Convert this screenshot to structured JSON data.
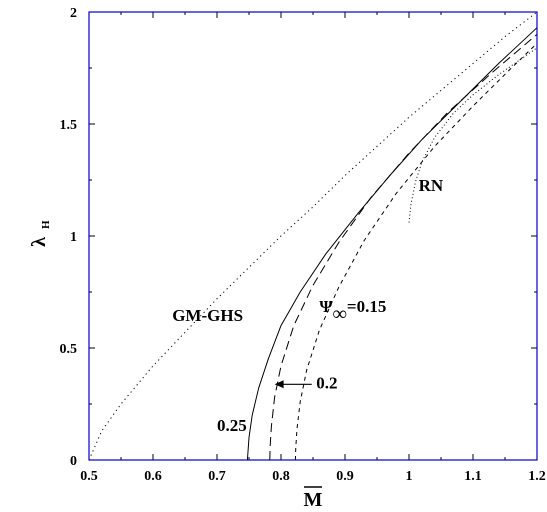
{
  "chart_data": {
    "type": "line",
    "xlabel": "M",
    "ylabel": "λ",
    "ylabel_sub": "H",
    "xlim": [
      0.5,
      1.2
    ],
    "ylim": [
      0,
      2
    ],
    "x_ticks": [
      0.5,
      0.6,
      0.7,
      0.8,
      0.9,
      1,
      1.1,
      1.2
    ],
    "x_tick_labels": [
      "0.5",
      "0.6",
      "0.7",
      "0.8",
      "0.9",
      "1",
      "1.1",
      "1.2"
    ],
    "y_ticks": [
      0,
      0.5,
      1,
      1.5,
      2
    ],
    "y_tick_labels": [
      "0",
      "0.5",
      "1",
      "1.5",
      "2"
    ],
    "grid": false,
    "series": [
      {
        "name": "GM-GHS",
        "style": "dotted",
        "x": [
          0.5,
          0.52,
          0.55,
          0.6,
          0.65,
          0.7,
          0.75,
          0.8,
          0.85,
          0.9,
          0.95,
          1.0,
          1.05,
          1.1,
          1.15,
          1.2
        ],
        "y": [
          0.0,
          0.13,
          0.25,
          0.42,
          0.57,
          0.72,
          0.86,
          1.0,
          1.13,
          1.27,
          1.4,
          1.53,
          1.65,
          1.77,
          1.89,
          2.0
        ]
      },
      {
        "name": "0.25",
        "style": "solid",
        "x": [
          0.7475,
          0.75,
          0.755,
          0.765,
          0.78,
          0.8,
          0.83,
          0.87,
          0.92,
          0.97,
          1.02,
          1.08,
          1.14,
          1.2
        ],
        "y": [
          0.0,
          0.1,
          0.2,
          0.32,
          0.45,
          0.6,
          0.75,
          0.92,
          1.1,
          1.27,
          1.43,
          1.6,
          1.77,
          1.93
        ]
      },
      {
        "name": "0.2",
        "style": "dashed",
        "x": [
          0.7825,
          0.783,
          0.785,
          0.79,
          0.8,
          0.82,
          0.85,
          0.89,
          0.94,
          1.0,
          1.06,
          1.13,
          1.2
        ],
        "y": [
          0.0,
          0.06,
          0.15,
          0.28,
          0.42,
          0.6,
          0.78,
          0.97,
          1.17,
          1.37,
          1.55,
          1.73,
          1.9
        ]
      },
      {
        "name": "0.15",
        "style": "short-dashed",
        "x": [
          0.8225,
          0.823,
          0.825,
          0.83,
          0.84,
          0.86,
          0.89,
          0.93,
          0.98,
          1.04,
          1.1,
          1.16,
          1.2
        ],
        "y": [
          0.0,
          0.05,
          0.14,
          0.26,
          0.4,
          0.58,
          0.77,
          0.98,
          1.19,
          1.4,
          1.58,
          1.75,
          1.86
        ]
      },
      {
        "name": "RN",
        "style": "fine-dotted",
        "x": [
          1.0,
          1.003,
          1.01,
          1.02,
          1.04,
          1.07,
          1.1,
          1.14,
          1.18,
          1.2
        ],
        "y": [
          1.06,
          1.14,
          1.24,
          1.33,
          1.44,
          1.55,
          1.63,
          1.72,
          1.8,
          1.84
        ]
      }
    ],
    "annotations": [
      {
        "id": "gmghs",
        "text": "GM-GHS",
        "x": 0.63,
        "y": 0.62
      },
      {
        "id": "rn",
        "text": "RN",
        "x": 1.015,
        "y": 1.2
      },
      {
        "id": "psi",
        "prefix": "Ψ",
        "sub": "∞",
        "text": "=0.15",
        "x": 0.86,
        "y": 0.66
      },
      {
        "id": "a02",
        "text": "0.2",
        "x": 0.855,
        "y": 0.32
      },
      {
        "id": "a025",
        "text": "0.25",
        "x": 0.7,
        "y": 0.13
      }
    ],
    "arrow": {
      "from": [
        0.848,
        0.338
      ],
      "to": [
        0.79,
        0.338
      ]
    }
  }
}
